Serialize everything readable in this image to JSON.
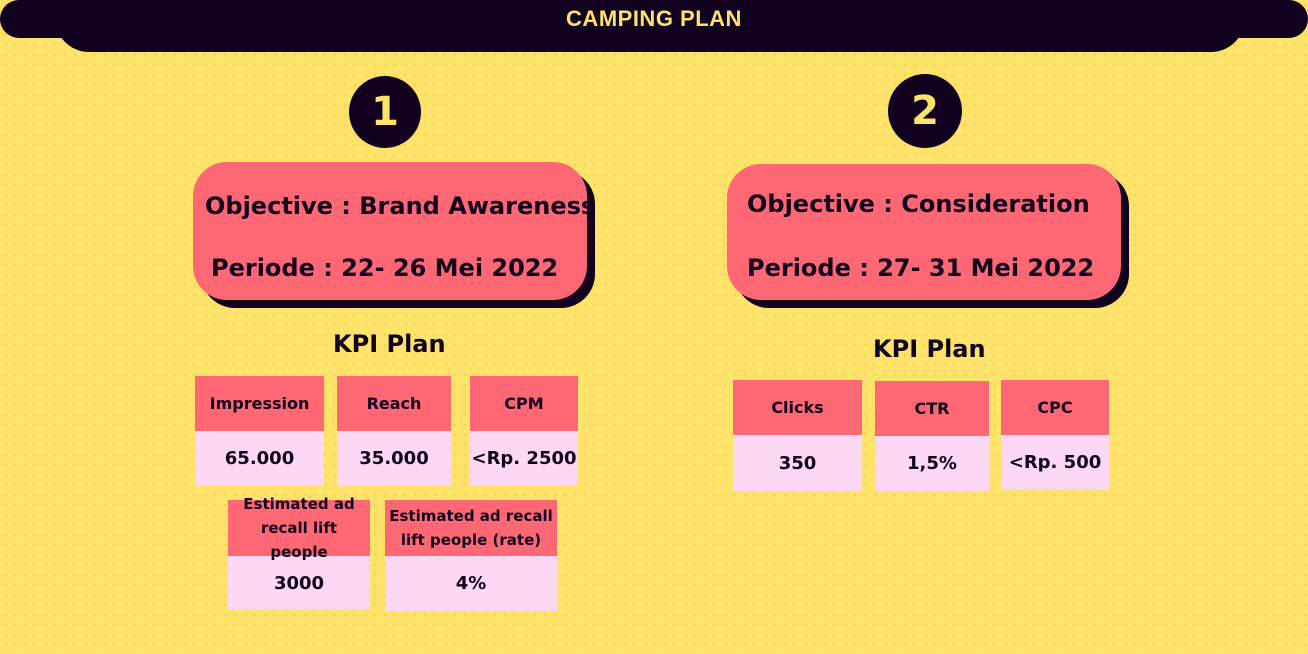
{
  "header": {
    "title": "CAMPING PLAN"
  },
  "plans": [
    {
      "number": "1",
      "objective": "Objective : Brand Awareness",
      "periode": "Periode : 22- 26 Mei 2022",
      "kpi_title": "KPI Plan",
      "kpis": [
        {
          "label": "Impression",
          "value": "65.000"
        },
        {
          "label": "Reach",
          "value": "35.000"
        },
        {
          "label": "CPM",
          "value": "<Rp. 2500"
        },
        {
          "label": "Estimated ad recall lift people",
          "value": "3000"
        },
        {
          "label": "Estimated ad recall lift people (rate)",
          "value": "4%"
        }
      ]
    },
    {
      "number": "2",
      "objective": "Objective : Consideration",
      "periode": "Periode : 27- 31 Mei 2022",
      "kpi_title": "KPI Plan",
      "kpis": [
        {
          "label": "Clicks",
          "value": "350"
        },
        {
          "label": "CTR",
          "value": "1,5%"
        },
        {
          "label": "CPC",
          "value": "<Rp. 500"
        }
      ]
    }
  ],
  "colors": {
    "background": "#fde36a",
    "dark": "#12001f",
    "card": "#fe6774",
    "value_cell": "#fcd8f4"
  }
}
